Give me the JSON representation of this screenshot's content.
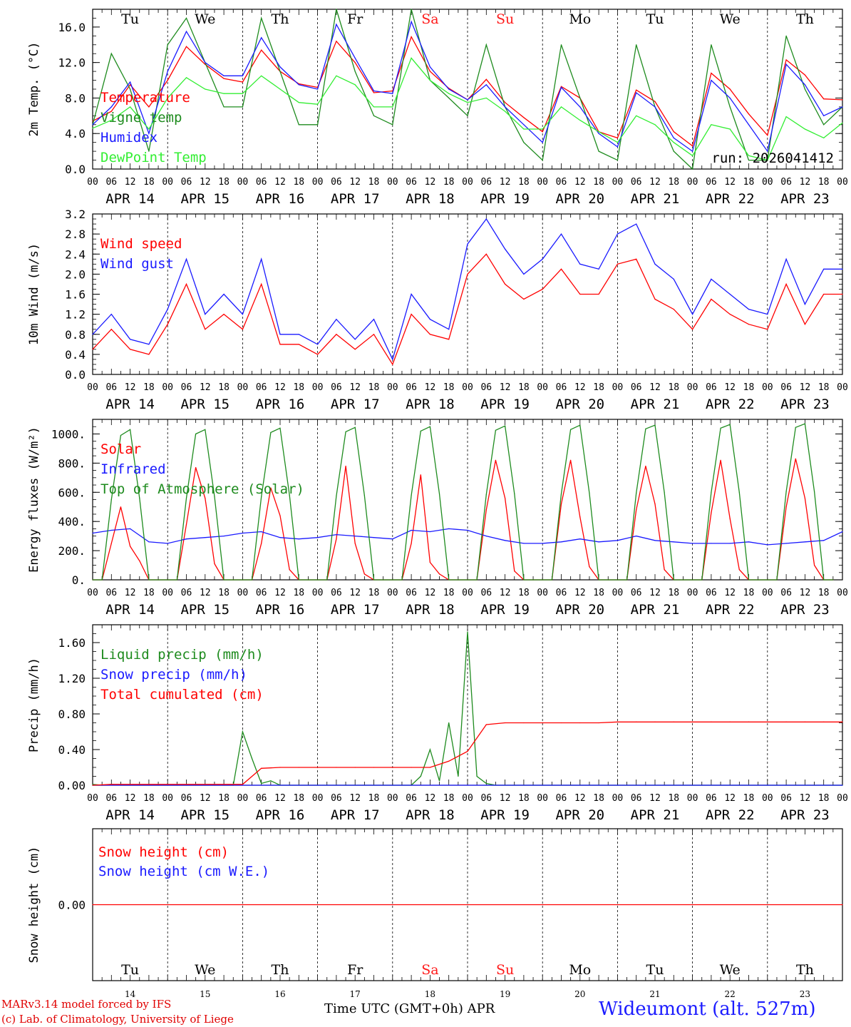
{
  "colors": {
    "red": "#ff0000",
    "green": "#1e8b1e",
    "blue": "#1a1aff",
    "lightgreen": "#33ee33",
    "black": "#000000",
    "weekend": "#ff1a1a"
  },
  "axis": {
    "days": [
      "APR 14",
      "APR 15",
      "APR 16",
      "APR 17",
      "APR 18",
      "APR 19",
      "APR 20",
      "APR 21",
      "APR 22",
      "APR 23"
    ],
    "day_numbers": [
      "14",
      "15",
      "16",
      "17",
      "18",
      "19",
      "20",
      "21",
      "22",
      "23"
    ],
    "weekdays": [
      "Tu",
      "We",
      "Th",
      "Fr",
      "Sa",
      "Su",
      "Mo",
      "Tu",
      "We",
      "Th"
    ],
    "weekend_days": [
      4,
      5
    ],
    "hours": [
      "00",
      "06",
      "12",
      "18"
    ],
    "final_hour": "00",
    "xlabel": "Time UTC (GMT+0h)",
    "month": "APR"
  },
  "footer": {
    "model": "MARv3.14 model forced by IFS",
    "lab": "(c) Lab. of Climatology, University of Liege",
    "station": "Wideumont (alt. 527m)"
  },
  "chart_data": [
    {
      "type": "line",
      "ylabel": "2m Temp. (°C)",
      "ylim": [
        0,
        18
      ],
      "yticks": [
        "0.0",
        "4.0",
        "8.0",
        "12.0",
        "16.0"
      ],
      "annotation": "run: 2026041412",
      "legend": [
        {
          "name": "Temperature",
          "color": "red"
        },
        {
          "name": "Vigne temp",
          "color": "green"
        },
        {
          "name": "Humidex",
          "color": "blue"
        },
        {
          "name": "DewPoint Temp",
          "color": "lightgreen"
        }
      ],
      "series": [
        {
          "name": "Temperature",
          "color": "red",
          "step_hours": 6,
          "values": [
            5.4,
            6.5,
            9.5,
            7.0,
            10.0,
            13.8,
            11.8,
            10.2,
            9.8,
            13.4,
            11.0,
            9.6,
            9.2,
            14.4,
            12.0,
            8.6,
            8.8,
            14.9,
            11.0,
            9.1,
            7.8,
            10.1,
            7.5,
            5.8,
            4.2,
            9.3,
            8.0,
            4.2,
            3.5,
            8.9,
            7.6,
            4.2,
            2.6,
            10.8,
            9.0,
            6.2,
            3.8,
            12.3,
            10.6,
            7.9,
            7.8
          ]
        },
        {
          "name": "Vigne temp",
          "color": "green",
          "step_hours": 6,
          "values": [
            5.0,
            13.0,
            9.0,
            2.0,
            14.0,
            17.0,
            12.0,
            7.0,
            7.0,
            17.0,
            11.0,
            5.0,
            5.0,
            18.0,
            11.0,
            6.0,
            5.0,
            18.0,
            10.0,
            8.0,
            6.0,
            14.0,
            7.0,
            3.0,
            1.0,
            14.0,
            8.0,
            2.0,
            1.0,
            14.0,
            7.0,
            2.0,
            0.0,
            14.0,
            7.0,
            1.0,
            1.0,
            15.0,
            9.0,
            5.0,
            7.0
          ]
        },
        {
          "name": "Humidex",
          "color": "blue",
          "step_hours": 6,
          "values": [
            5.0,
            7.0,
            9.8,
            4.0,
            11.0,
            15.5,
            12.0,
            10.5,
            10.5,
            14.8,
            11.5,
            9.5,
            9.0,
            16.3,
            12.5,
            8.8,
            8.5,
            16.6,
            11.5,
            9.0,
            7.8,
            9.5,
            7.0,
            5.0,
            3.0,
            9.2,
            7.0,
            4.0,
            2.5,
            8.6,
            7.0,
            3.5,
            2.0,
            10.0,
            8.0,
            5.0,
            2.0,
            11.8,
            9.5,
            6.0,
            7.0
          ]
        },
        {
          "name": "DewPoint Temp",
          "color": "lightgreen",
          "step_hours": 6,
          "values": [
            4.6,
            5.5,
            7.0,
            4.5,
            8.0,
            10.3,
            9.0,
            8.5,
            8.5,
            10.5,
            9.0,
            7.5,
            7.3,
            10.5,
            9.5,
            7.0,
            7.0,
            12.5,
            10.0,
            8.5,
            7.5,
            8.0,
            6.5,
            4.5,
            4.5,
            7.0,
            5.5,
            4.2,
            3.0,
            6.0,
            5.0,
            3.0,
            1.5,
            5.0,
            4.5,
            1.5,
            1.0,
            5.9,
            4.5,
            3.5,
            5.2
          ]
        }
      ]
    },
    {
      "type": "line",
      "ylabel": "10m Wind (m/s)",
      "ylim": [
        0,
        3.2
      ],
      "yticks": [
        "0.0",
        "0.4",
        "0.8",
        "1.2",
        "1.6",
        "2.0",
        "2.4",
        "2.8",
        "3.2"
      ],
      "legend": [
        {
          "name": "Wind speed",
          "color": "red"
        },
        {
          "name": "Wind gust",
          "color": "blue"
        }
      ],
      "series": [
        {
          "name": "Wind speed",
          "color": "red",
          "step_hours": 6,
          "values": [
            0.5,
            0.9,
            0.5,
            0.4,
            1.0,
            1.8,
            0.9,
            1.2,
            0.9,
            1.8,
            0.6,
            0.6,
            0.4,
            0.8,
            0.5,
            0.8,
            0.2,
            1.2,
            0.8,
            0.7,
            2.0,
            2.4,
            1.8,
            1.5,
            1.7,
            2.1,
            1.6,
            1.6,
            2.2,
            2.3,
            1.5,
            1.3,
            0.9,
            1.5,
            1.2,
            1.0,
            0.9,
            1.8,
            1.0,
            1.6,
            1.6
          ]
        },
        {
          "name": "Wind gust",
          "color": "blue",
          "step_hours": 6,
          "values": [
            0.8,
            1.2,
            0.7,
            0.6,
            1.3,
            2.3,
            1.2,
            1.6,
            1.2,
            2.3,
            0.8,
            0.8,
            0.6,
            1.1,
            0.7,
            1.1,
            0.3,
            1.6,
            1.1,
            0.9,
            2.6,
            3.1,
            2.5,
            2.0,
            2.3,
            2.8,
            2.2,
            2.1,
            2.8,
            3.0,
            2.2,
            1.9,
            1.2,
            1.9,
            1.6,
            1.3,
            1.2,
            2.3,
            1.4,
            2.1,
            2.1
          ]
        }
      ]
    },
    {
      "type": "line",
      "ylabel": "Energy fluxes (W/m²)",
      "ylim": [
        0,
        1100
      ],
      "yticks": [
        "0.",
        "200.",
        "400.",
        "600.",
        "800.",
        "1000."
      ],
      "legend": [
        {
          "name": "Solar",
          "color": "red"
        },
        {
          "name": "Infrared",
          "color": "blue"
        },
        {
          "name": "Top of Atmosphere (Solar)",
          "color": "green"
        }
      ],
      "series": [
        {
          "name": "Solar",
          "color": "red",
          "step_hours": 3,
          "values": [
            0,
            0,
            250,
            500,
            230,
            130,
            0,
            0,
            0,
            0,
            380,
            770,
            560,
            110,
            0,
            0,
            0,
            0,
            250,
            630,
            440,
            70,
            0,
            0,
            0,
            0,
            280,
            780,
            250,
            40,
            0,
            0,
            0,
            0,
            250,
            720,
            120,
            40,
            0,
            0,
            0,
            0,
            480,
            820,
            560,
            60,
            0,
            0,
            0,
            0,
            520,
            820,
            430,
            90,
            0,
            0,
            0,
            0,
            480,
            780,
            520,
            70,
            0,
            0,
            0,
            0,
            460,
            820,
            420,
            70,
            0,
            0,
            0,
            0,
            500,
            830,
            560,
            100,
            0,
            0
          ]
        },
        {
          "name": "Infrared",
          "color": "blue",
          "step_hours": 6,
          "values": [
            320,
            340,
            350,
            260,
            250,
            280,
            290,
            300,
            320,
            330,
            290,
            280,
            290,
            310,
            300,
            290,
            280,
            340,
            330,
            350,
            340,
            300,
            270,
            250,
            250,
            260,
            280,
            260,
            270,
            300,
            270,
            260,
            250,
            250,
            250,
            260,
            240,
            250,
            260,
            270,
            330
          ]
        },
        {
          "name": "Top of Atmosphere (Solar)",
          "color": "green",
          "step_hours": 3,
          "values": [
            0,
            0,
            550,
            990,
            1030,
            560,
            0,
            0,
            0,
            0,
            560,
            1000,
            1030,
            570,
            0,
            0,
            0,
            0,
            570,
            1010,
            1040,
            580,
            0,
            0,
            0,
            0,
            575,
            1015,
            1045,
            580,
            0,
            0,
            0,
            0,
            580,
            1020,
            1050,
            590,
            0,
            0,
            0,
            0,
            585,
            1025,
            1055,
            590,
            0,
            0,
            0,
            0,
            590,
            1030,
            1060,
            595,
            0,
            0,
            0,
            0,
            595,
            1035,
            1060,
            600,
            0,
            0,
            0,
            0,
            600,
            1040,
            1065,
            600,
            0,
            0,
            0,
            0,
            605,
            1045,
            1070,
            605,
            0,
            0
          ]
        }
      ]
    },
    {
      "type": "line",
      "ylabel": "Precip (mm/h)",
      "ylim": [
        0,
        1.8
      ],
      "yticks": [
        "0.00",
        "0.40",
        "0.80",
        "1.20",
        "1.60"
      ],
      "legend": [
        {
          "name": "Liquid precip (mm/h)",
          "color": "green"
        },
        {
          "name": "Snow precip (mm/h)",
          "color": "blue"
        },
        {
          "name": "Total cumulated (cm)",
          "color": "red"
        }
      ],
      "series": [
        {
          "name": "Liquid precip (mm/h)",
          "color": "green",
          "step_hours": 3,
          "values": [
            0.01,
            0.0,
            0.01,
            0.0,
            0.0,
            0.0,
            0.0,
            0.0,
            0.0,
            0.0,
            0.0,
            0.0,
            0.0,
            0.0,
            0.0,
            0.0,
            0.6,
            0.3,
            0.02,
            0.05,
            0.0,
            0.0,
            0.0,
            0.0,
            0.0,
            0.0,
            0.0,
            0.0,
            0.0,
            0.0,
            0.0,
            0.0,
            0.0,
            0.0,
            0.0,
            0.1,
            0.4,
            0.05,
            0.7,
            0.1,
            1.72,
            0.1,
            0.02,
            0.0,
            0.0,
            0.0,
            0.0,
            0.0,
            0.0,
            0.0,
            0.0,
            0.0,
            0.0,
            0.0,
            0.0,
            0.0,
            0.0,
            0.0,
            0.0,
            0.0,
            0.0,
            0.0,
            0.0,
            0.0,
            0.0,
            0.0,
            0.0,
            0.0,
            0.0,
            0.0,
            0.0,
            0.0,
            0.0,
            0.0,
            0.0,
            0.0,
            0.0,
            0.0,
            0.0,
            0.0,
            0.0
          ]
        },
        {
          "name": "Snow precip (mm/h)",
          "color": "blue",
          "step_hours": 24,
          "values": [
            0,
            0,
            0,
            0,
            0,
            0,
            0,
            0,
            0,
            0,
            0
          ]
        },
        {
          "name": "Total cumulated (cm)",
          "color": "red",
          "step_hours": 6,
          "values": [
            0.0,
            0.01,
            0.01,
            0.01,
            0.01,
            0.01,
            0.01,
            0.01,
            0.01,
            0.19,
            0.2,
            0.2,
            0.2,
            0.2,
            0.2,
            0.2,
            0.2,
            0.2,
            0.2,
            0.27,
            0.38,
            0.68,
            0.7,
            0.7,
            0.7,
            0.7,
            0.7,
            0.7,
            0.71,
            0.71,
            0.71,
            0.71,
            0.71,
            0.71,
            0.71,
            0.71,
            0.71,
            0.71,
            0.71,
            0.71,
            0.71
          ]
        }
      ]
    },
    {
      "type": "line",
      "ylabel": "Snow height (cm)",
      "ylim": [
        -1,
        1
      ],
      "yticks": [
        "0.00"
      ],
      "legend": [
        {
          "name": "Snow height (cm)",
          "color": "red"
        },
        {
          "name": "Snow height (cm W.E.)",
          "color": "blue"
        }
      ],
      "series": [
        {
          "name": "Snow height (cm)",
          "color": "red",
          "step_hours": 24,
          "values": [
            0,
            0,
            0,
            0,
            0,
            0,
            0,
            0,
            0,
            0,
            0
          ]
        }
      ]
    }
  ]
}
